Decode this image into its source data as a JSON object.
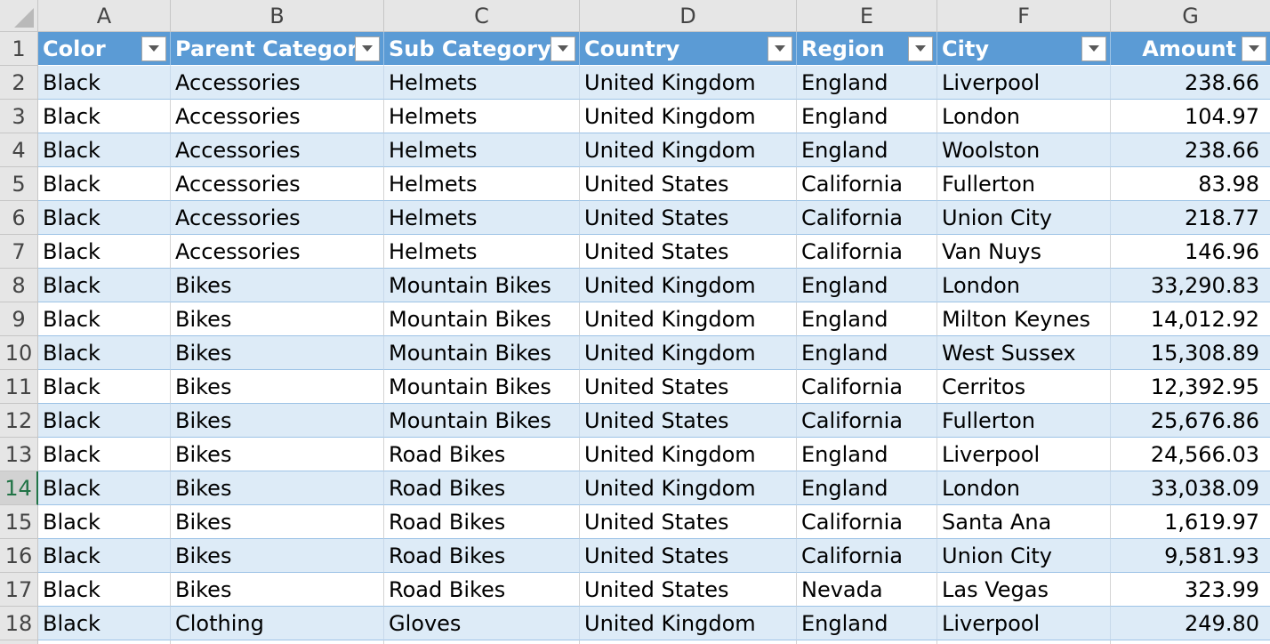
{
  "columns": [
    "A",
    "B",
    "C",
    "D",
    "E",
    "F",
    "G"
  ],
  "selected_row": 14,
  "table": {
    "headers": [
      "Color",
      "Parent Category",
      "Sub Category",
      "Country",
      "Region",
      "City",
      "Amount"
    ],
    "rows": [
      [
        "Black",
        "Accessories",
        "Helmets",
        "United Kingdom",
        "England",
        "Liverpool",
        "238.66"
      ],
      [
        "Black",
        "Accessories",
        "Helmets",
        "United Kingdom",
        "England",
        "London",
        "104.97"
      ],
      [
        "Black",
        "Accessories",
        "Helmets",
        "United Kingdom",
        "England",
        "Woolston",
        "238.66"
      ],
      [
        "Black",
        "Accessories",
        "Helmets",
        "United States",
        "California",
        "Fullerton",
        "83.98"
      ],
      [
        "Black",
        "Accessories",
        "Helmets",
        "United States",
        "California",
        "Union City",
        "218.77"
      ],
      [
        "Black",
        "Accessories",
        "Helmets",
        "United States",
        "California",
        "Van Nuys",
        "146.96"
      ],
      [
        "Black",
        "Bikes",
        "Mountain Bikes",
        "United Kingdom",
        "England",
        "London",
        "33,290.83"
      ],
      [
        "Black",
        "Bikes",
        "Mountain Bikes",
        "United Kingdom",
        "England",
        "Milton Keynes",
        "14,012.92"
      ],
      [
        "Black",
        "Bikes",
        "Mountain Bikes",
        "United Kingdom",
        "England",
        "West Sussex",
        "15,308.89"
      ],
      [
        "Black",
        "Bikes",
        "Mountain Bikes",
        "United States",
        "California",
        "Cerritos",
        "12,392.95"
      ],
      [
        "Black",
        "Bikes",
        "Mountain Bikes",
        "United States",
        "California",
        "Fullerton",
        "25,676.86"
      ],
      [
        "Black",
        "Bikes",
        "Road Bikes",
        "United Kingdom",
        "England",
        "Liverpool",
        "24,566.03"
      ],
      [
        "Black",
        "Bikes",
        "Road Bikes",
        "United Kingdom",
        "England",
        "London",
        "33,038.09"
      ],
      [
        "Black",
        "Bikes",
        "Road Bikes",
        "United States",
        "California",
        "Santa Ana",
        "1,619.97"
      ],
      [
        "Black",
        "Bikes",
        "Road Bikes",
        "United States",
        "California",
        "Union City",
        "9,581.93"
      ],
      [
        "Black",
        "Bikes",
        "Road Bikes",
        "United States",
        "Nevada",
        "Las Vegas",
        "323.99"
      ],
      [
        "Black",
        "Clothing",
        "Gloves",
        "United Kingdom",
        "England",
        "Liverpool",
        "249.80"
      ],
      [
        "",
        "",
        "",
        "",
        "",
        "",
        ""
      ]
    ]
  },
  "icons": {
    "filter": "filter-dropdown-icon",
    "select_all": "select-all-triangle-icon"
  },
  "colors": {
    "header_fill": "#5b9bd5",
    "band_fill": "#ddebf7",
    "selection_accent": "#217346"
  }
}
